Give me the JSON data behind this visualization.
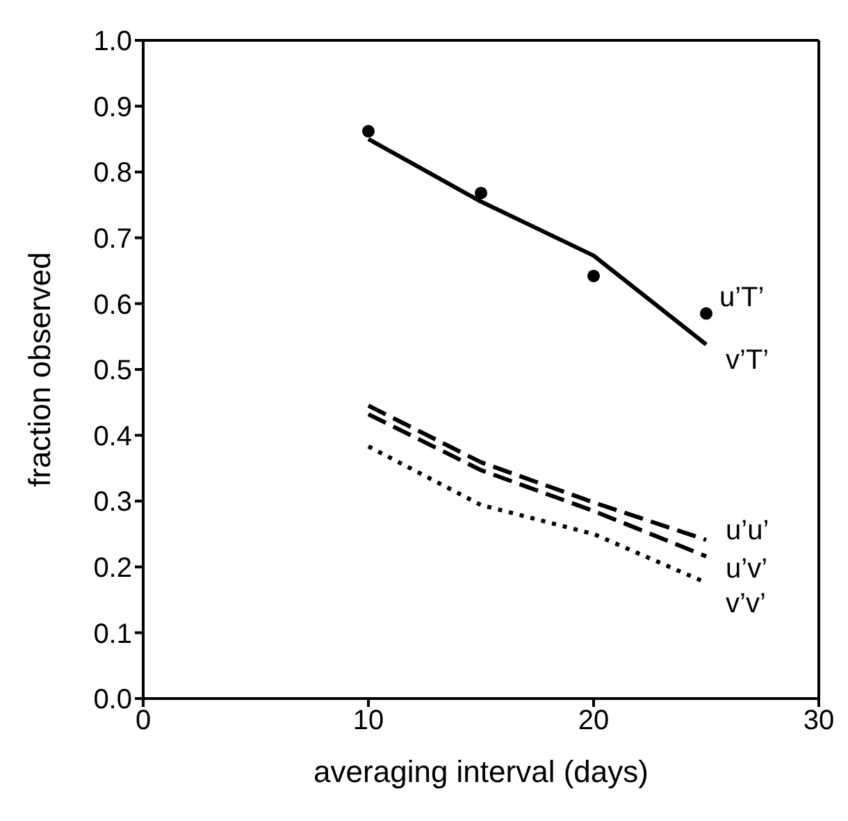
{
  "chart_data": {
    "type": "line",
    "xlabel": "averaging interval (days)",
    "ylabel": "fraction observed",
    "x": [
      10,
      15,
      20,
      25
    ],
    "series": [
      {
        "name": "u’T’",
        "type": "scatter",
        "marker": "circle",
        "color": "#000000",
        "values": [
          0.862,
          0.768,
          0.642,
          0.585
        ]
      },
      {
        "name": "v’T’",
        "line_style": "solid",
        "color": "#000000",
        "values": [
          0.85,
          0.755,
          0.673,
          0.538
        ]
      },
      {
        "name": "u’u’",
        "line_style": "dashed",
        "color": "#000000",
        "values": [
          0.445,
          0.359,
          0.298,
          0.241
        ]
      },
      {
        "name": "u’v’",
        "line_style": "dashed",
        "color": "#000000",
        "values": [
          0.432,
          0.347,
          0.285,
          0.216
        ]
      },
      {
        "name": "v’v’",
        "line_style": "dotted",
        "color": "#000000",
        "values": [
          0.383,
          0.294,
          0.25,
          0.176
        ]
      }
    ],
    "xlim": [
      0,
      30
    ],
    "xticks": [
      0,
      10,
      20,
      30
    ],
    "ylim": [
      0,
      1
    ],
    "yticks": [
      {
        "value": 0,
        "label": "0.0"
      },
      {
        "value": 0.1,
        "label": "0.1"
      },
      {
        "value": 0.2,
        "label": "0.2"
      },
      {
        "value": 0.3,
        "label": "0.3"
      },
      {
        "value": 0.4,
        "label": "0.4"
      },
      {
        "value": 0.5,
        "label": "0.5"
      },
      {
        "value": 0.6,
        "label": "0.6"
      },
      {
        "value": 0.7,
        "label": "0.7"
      },
      {
        "value": 0.8,
        "label": "0.8"
      },
      {
        "value": 0.9,
        "label": "0.9"
      },
      {
        "value": 1,
        "label": "1.0"
      }
    ],
    "grid": false,
    "legend": false
  }
}
